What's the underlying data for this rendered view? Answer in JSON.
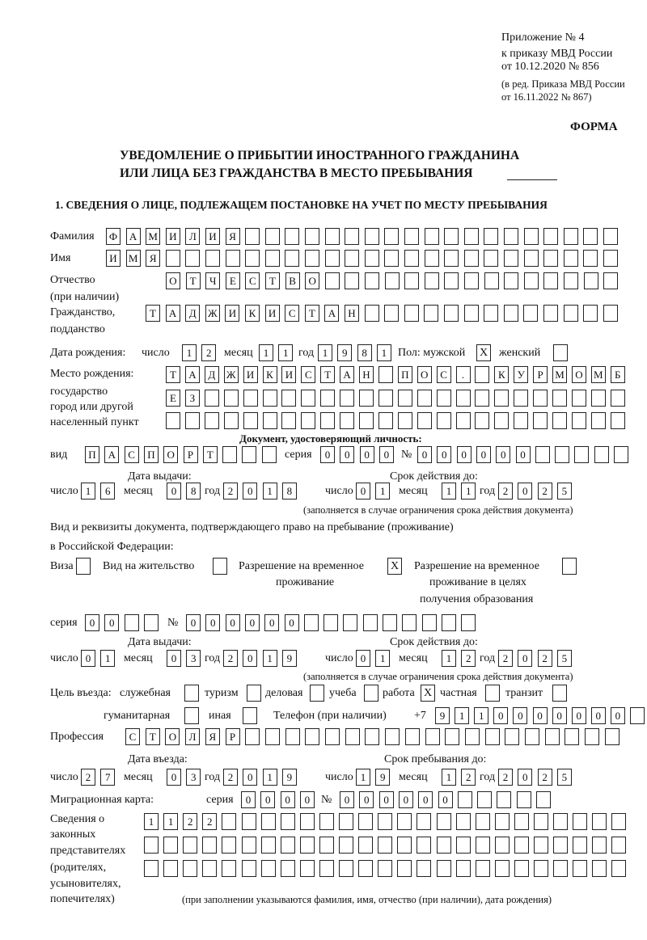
{
  "header": {
    "appendix_lines": [
      "Приложение № 4",
      "к приказу МВД России",
      "от 10.12.2020 № 856"
    ],
    "revision_lines": [
      "(в ред. Приказа МВД России",
      "от 16.11.2022 № 867)"
    ],
    "form_label": "ФОРМА",
    "title_lines": [
      "УВЕДОМЛЕНИЕ О ПРИБЫТИИ ИНОСТРАННОГО ГРАЖДАНИНА",
      "ИЛИ ЛИЦА БЕЗ ГРАЖДАНСТВА В МЕСТО ПРЕБЫВАНИЯ"
    ],
    "section_heading": "1. СВЕДЕНИЯ О ЛИЦЕ, ПОДЛЕЖАЩЕМ ПОСТАНОВКЕ НА УЧЕТ ПО МЕСТУ ПРЕБЫВАНИЯ"
  },
  "person": {
    "surname_label": "Фамилия",
    "surname": "ФАМИЛИЯ",
    "name_label": "Имя",
    "name": "ИМЯ",
    "patronymic_label": [
      "Отчество",
      "(при наличии)"
    ],
    "patronymic": "ОТЧЕСТВО",
    "citizenship_label": [
      "Гражданство,",
      "подданство"
    ],
    "citizenship": "ТАДЖИКИСТАН",
    "birth": {
      "label": "Дата рождения:",
      "day_label": "число",
      "month_label": "месяц",
      "year_label": "год",
      "day": "12",
      "month": "11",
      "year": "1981"
    },
    "sex": {
      "label": "Пол: мужской",
      "male": true,
      "female_label": "женский",
      "female": false
    },
    "birthplace_label": [
      "Место рождения:",
      "государство",
      "город или другой",
      "населенный пункт"
    ],
    "birthplace": [
      "ТАДЖИКИСТАН ПОС. КУРМОМБ",
      "ЕЗ",
      ""
    ]
  },
  "identity_doc": {
    "heading": "Документ, удостоверяющий личность:",
    "type_label": "вид",
    "type": "ПАСПОРТ",
    "series_label": "серия",
    "series": "0000",
    "number_label": "№",
    "number": "000000",
    "issue_label": "Дата выдачи:",
    "valid_label": "Срок действия до:",
    "day_label": "число",
    "month_label": "месяц",
    "year_label": "год",
    "issue": {
      "day": "16",
      "month": "08",
      "year": "2018"
    },
    "valid": {
      "day": "01",
      "month": "11",
      "year": "2025"
    },
    "note": "(заполняется в случае ограничения срока действия документа)"
  },
  "residence_doc": {
    "heading_lines": [
      "Вид и реквизиты документа, подтверждающего право на пребывание (проживание)",
      "в Российской Федерации:"
    ],
    "options": [
      {
        "label": "Виза",
        "checked": false
      },
      {
        "label": "Вид на жительство",
        "checked": false
      },
      {
        "label": "Разрешение на временное",
        "label2": "проживание",
        "checked": true
      },
      {
        "label": "Разрешение на временное",
        "label2": "проживание в целях",
        "label3": "получения образования",
        "checked": false
      }
    ],
    "series_label": "серия",
    "series": "00",
    "number_label": "№",
    "number": "000000",
    "issue": {
      "day": "01",
      "month": "03",
      "year": "2019"
    },
    "valid": {
      "day": "01",
      "month": "12",
      "year": "2025"
    }
  },
  "visit": {
    "purpose_label": "Цель въезда:",
    "purposes": [
      {
        "label": "служебная",
        "checked": false
      },
      {
        "label": "туризм",
        "checked": false
      },
      {
        "label": "деловая",
        "checked": false
      },
      {
        "label": "учеба",
        "checked": false
      },
      {
        "label": "работа",
        "checked": true
      },
      {
        "label": "частная",
        "checked": false
      },
      {
        "label": "транзит",
        "checked": false
      },
      {
        "label": "гуманитарная",
        "checked": false
      },
      {
        "label": "иная",
        "checked": false
      }
    ],
    "phone_label": "Телефон (при наличии)",
    "phone_prefix": "+7",
    "phone": "9110000000",
    "profession_label": "Профессия",
    "profession": "СТОЛЯР",
    "entry_label": "Дата въезда:",
    "stay_until_label": "Срок пребывания до:",
    "entry": {
      "day": "27",
      "month": "03",
      "year": "2019"
    },
    "stay_until": {
      "day": "19",
      "month": "12",
      "year": "2025"
    },
    "migration_card_label": "Миграционная карта:",
    "migration_series": "0000",
    "migration_number": "000000",
    "representatives_label": [
      "Сведения о",
      "законных",
      "представителях",
      "(родителях,",
      "усыновителях,",
      "попечителях)"
    ],
    "representatives": [
      "1122",
      "",
      ""
    ],
    "representatives_note": "(при заполнении указываются фамилия, имя, отчество (при наличии), дата рождения)"
  }
}
